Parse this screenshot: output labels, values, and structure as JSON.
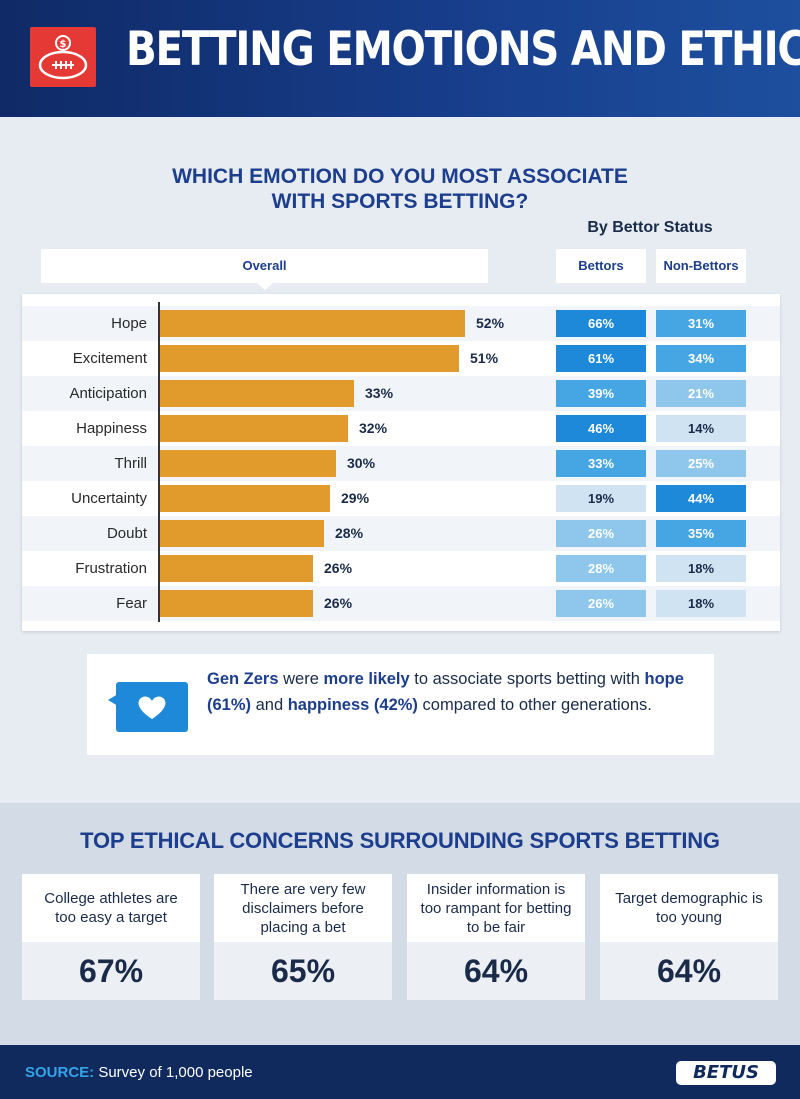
{
  "header": {
    "title": "BETTING EMOTIONS AND ETHICS",
    "logo_icon": "football-money-icon"
  },
  "question": {
    "line1": "WHICH EMOTION DO YOU MOST ASSOCIATE",
    "line2": "WITH SPORTS BETTING?"
  },
  "by_status": "By Bettor Status",
  "columns": {
    "overall": "Overall",
    "bettors": "Bettors",
    "non_bettors": "Non-Bettors"
  },
  "colors": {
    "bar": "#e19a2c",
    "cell_high": "#1e88d9",
    "cell_mid": "#45a6e3",
    "cell_light": "#8fc6ec",
    "cell_pale": "#cfe3f3",
    "title_blue": "#1d3e8c"
  },
  "chart_data": {
    "type": "bar",
    "categories": [
      "Hope",
      "Excitement",
      "Anticipation",
      "Happiness",
      "Thrill",
      "Uncertainty",
      "Doubt",
      "Frustration",
      "Fear"
    ],
    "series": [
      {
        "name": "Overall",
        "values": [
          52,
          51,
          33,
          32,
          30,
          29,
          28,
          26,
          26
        ]
      },
      {
        "name": "Bettors",
        "values": [
          66,
          61,
          39,
          46,
          33,
          19,
          26,
          28,
          26
        ]
      },
      {
        "name": "Non-Bettors",
        "values": [
          31,
          34,
          21,
          14,
          25,
          44,
          35,
          18,
          18
        ]
      }
    ],
    "value_labels": {
      "Overall": [
        "52%",
        "51%",
        "33%",
        "32%",
        "30%",
        "29%",
        "28%",
        "26%",
        "26%"
      ],
      "Bettors": [
        "66%",
        "61%",
        "39%",
        "46%",
        "33%",
        "19%",
        "26%",
        "28%",
        "26%"
      ],
      "Non-Bettors": [
        "31%",
        "34%",
        "21%",
        "14%",
        "25%",
        "44%",
        "35%",
        "18%",
        "18%"
      ]
    },
    "title": "WHICH EMOTION DO YOU MOST ASSOCIATE WITH SPORTS BETTING?",
    "xlabel": "",
    "ylabel": ""
  },
  "callout": {
    "icon": "heart-speech-bubble-icon",
    "p1": "Gen Zers",
    "p2": " were ",
    "p3": "more likely",
    "p4": " to associate sports betting with ",
    "p5": "hope (61%)",
    "p6": " and ",
    "p7": "happiness (42%)",
    "p8": " compared to other generations."
  },
  "concerns": {
    "title": "TOP ETHICAL CONCERNS SURROUNDING SPORTS BETTING",
    "items": [
      {
        "text": "College athletes are too easy a target",
        "value": "67%"
      },
      {
        "text": "There are very few disclaimers before placing a bet",
        "value": "65%"
      },
      {
        "text": "Insider information is too rampant for betting to be fair",
        "value": "64%"
      },
      {
        "text": "Target demographic is too young",
        "value": "64%"
      }
    ]
  },
  "footer": {
    "source_label": "SOURCE:",
    "source_text": " Survey of 1,000 people",
    "brand": "BETUS"
  }
}
